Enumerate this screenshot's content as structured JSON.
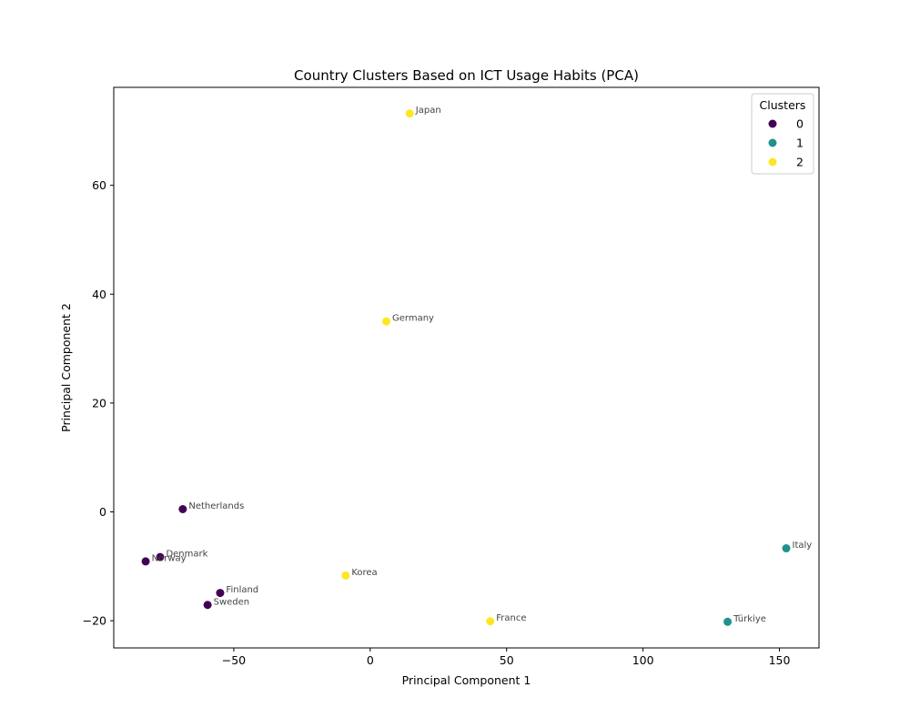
{
  "chart_data": {
    "type": "scatter",
    "title": "Country Clusters Based on ICT Usage Habits (PCA)",
    "xlabel": "Principal Component 1",
    "ylabel": "Principal Component 2",
    "xlim": [
      -94,
      164.5
    ],
    "ylim": [
      -25,
      78
    ],
    "xticks": [
      -50,
      0,
      50,
      100,
      150
    ],
    "yticks": [
      -20,
      0,
      20,
      40,
      60
    ],
    "grid": false,
    "legend": {
      "title": "Clusters",
      "position": "top-right",
      "entries": [
        {
          "label": "0",
          "color": "#440154"
        },
        {
          "label": "1",
          "color": "#21918c"
        },
        {
          "label": "2",
          "color": "#fde725"
        }
      ]
    },
    "points": [
      {
        "label": "Japan",
        "x": 14.5,
        "y": 73.2,
        "cluster": 2
      },
      {
        "label": "Germany",
        "x": 5.9,
        "y": 35.0,
        "cluster": 2
      },
      {
        "label": "Netherlands",
        "x": -68.7,
        "y": 0.5,
        "cluster": 0
      },
      {
        "label": "Denmark",
        "x": -77.0,
        "y": -8.3,
        "cluster": 0
      },
      {
        "label": "Norway",
        "x": -82.3,
        "y": -9.1,
        "cluster": 0
      },
      {
        "label": "Korea",
        "x": -9.0,
        "y": -11.7,
        "cluster": 2
      },
      {
        "label": "Finland",
        "x": -55.0,
        "y": -14.9,
        "cluster": 0
      },
      {
        "label": "Sweden",
        "x": -59.6,
        "y": -17.1,
        "cluster": 0
      },
      {
        "label": "France",
        "x": 44.0,
        "y": -20.1,
        "cluster": 2
      },
      {
        "label": "Türkiye",
        "x": 131.0,
        "y": -20.2,
        "cluster": 1
      },
      {
        "label": "Italy",
        "x": 152.5,
        "y": -6.7,
        "cluster": 1
      }
    ]
  }
}
